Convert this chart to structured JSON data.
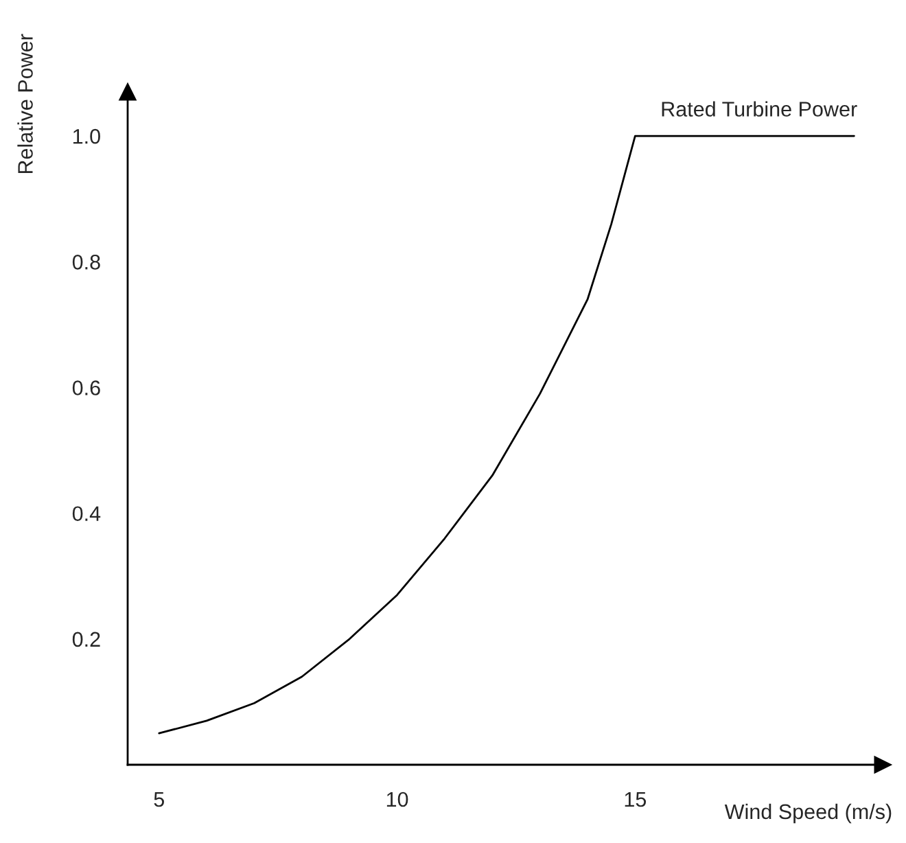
{
  "chart_data": {
    "type": "line",
    "xlabel": "Wind Speed (m/s)",
    "ylabel": "Relative Power",
    "x": [
      5,
      6,
      7,
      8,
      9,
      10,
      11,
      12,
      13,
      14,
      14.5,
      15,
      19.6
    ],
    "series": [
      {
        "color": "#000000",
        "values": [
          0.05,
          0.07,
          0.098,
          0.14,
          0.2,
          0.27,
          0.36,
          0.46,
          0.59,
          0.74,
          0.86,
          1.0,
          1.0
        ]
      }
    ],
    "annotations": [
      {
        "text": "Rated Turbine Power",
        "x": 17.6,
        "y": 1.0
      }
    ],
    "xlim": [
      4.34,
      20.2
    ],
    "ylim": [
      0,
      1.07
    ],
    "xticks": [
      5,
      10,
      15
    ],
    "yticks": [
      0.2,
      0.4,
      0.6,
      0.8,
      {
        "value": 1.0,
        "label": "1.0"
      }
    ],
    "grid": false,
    "legend": false,
    "marker": "none",
    "line_style": "solid"
  }
}
